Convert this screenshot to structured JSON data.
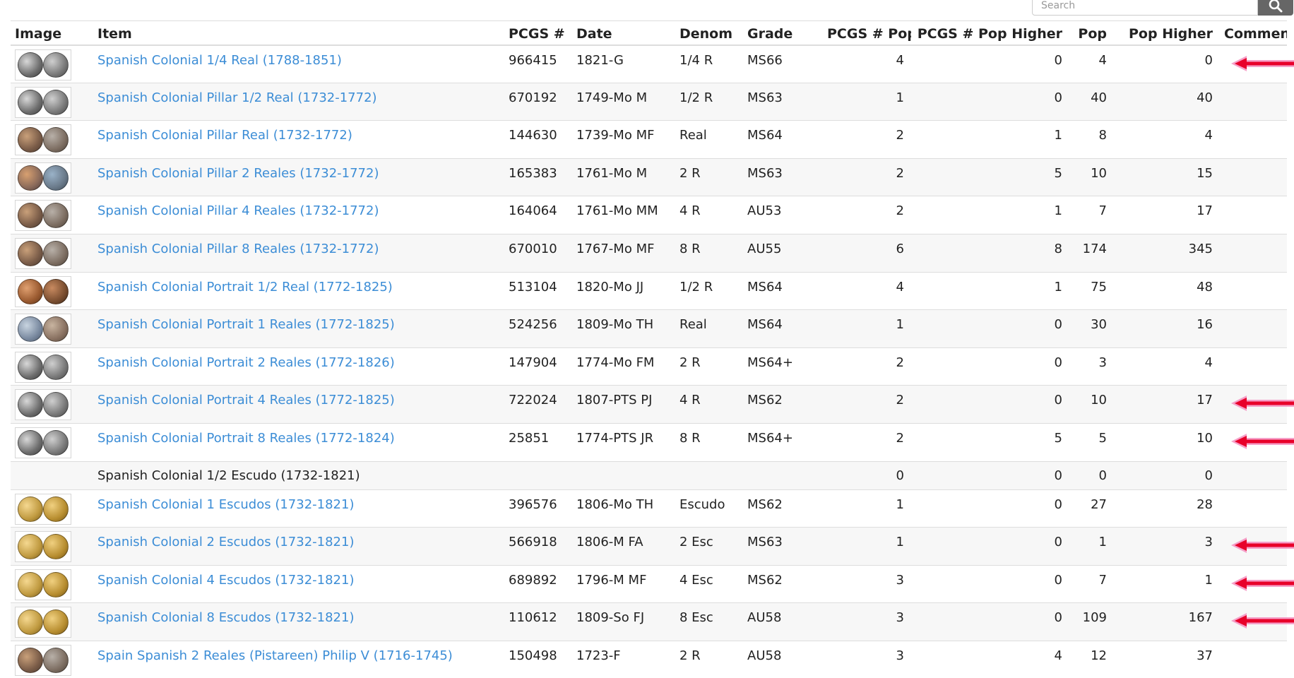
{
  "search": {
    "placeholder": "Search",
    "icon": "search-icon"
  },
  "columns": {
    "image": "Image",
    "item": "Item",
    "pcgs": "PCGS #",
    "date": "Date",
    "denom": "Denom",
    "grade": "Grade",
    "pcgs_pop": "PCGS # Pop",
    "pcgs_pop_higher": "PCGS # Pop Higher",
    "pop": "Pop",
    "pop_higher": "Pop Higher",
    "comments": "Comments"
  },
  "colors": {
    "link": "#3c8dd6",
    "arrow": "#e8002a",
    "arrow_glow": "#f58fc0"
  },
  "rows": [
    {
      "item": "Spanish Colonial 1/4 Real (1788-1851)",
      "pcgs": "966415",
      "date": "1821-G",
      "denom": "1/4 R",
      "grade": "MS66",
      "pcgs_pop": "4",
      "pcgs_pop_higher": "0",
      "pop": "4",
      "pop_higher": "0",
      "link": true,
      "has_image": true,
      "flagged": true,
      "coin_metal": "silver"
    },
    {
      "item": "Spanish Colonial Pillar 1/2 Real (1732-1772)",
      "pcgs": "670192",
      "date": "1749-Mo M",
      "denom": "1/2 R",
      "grade": "MS63",
      "pcgs_pop": "1",
      "pcgs_pop_higher": "0",
      "pop": "40",
      "pop_higher": "40",
      "link": true,
      "has_image": true,
      "flagged": false,
      "coin_metal": "silver"
    },
    {
      "item": "Spanish Colonial Pillar Real (1732-1772)",
      "pcgs": "144630",
      "date": "1739-Mo MF",
      "denom": "Real",
      "grade": "MS64",
      "pcgs_pop": "2",
      "pcgs_pop_higher": "1",
      "pop": "8",
      "pop_higher": "4",
      "link": true,
      "has_image": true,
      "flagged": false,
      "coin_metal": "toned"
    },
    {
      "item": "Spanish Colonial Pillar 2 Reales (1732-1772)",
      "pcgs": "165383",
      "date": "1761-Mo M",
      "denom": "2 R",
      "grade": "MS63",
      "pcgs_pop": "2",
      "pcgs_pop_higher": "5",
      "pop": "10",
      "pop_higher": "15",
      "link": true,
      "has_image": true,
      "flagged": false,
      "coin_metal": "rainbow"
    },
    {
      "item": "Spanish Colonial Pillar 4 Reales (1732-1772)",
      "pcgs": "164064",
      "date": "1761-Mo MM",
      "denom": "4 R",
      "grade": "AU53",
      "pcgs_pop": "2",
      "pcgs_pop_higher": "1",
      "pop": "7",
      "pop_higher": "17",
      "link": true,
      "has_image": true,
      "flagged": false,
      "coin_metal": "toned"
    },
    {
      "item": "Spanish Colonial Pillar 8 Reales (1732-1772)",
      "pcgs": "670010",
      "date": "1767-Mo MF",
      "denom": "8 R",
      "grade": "AU55",
      "pcgs_pop": "6",
      "pcgs_pop_higher": "8",
      "pop": "174",
      "pop_higher": "345",
      "link": true,
      "has_image": true,
      "flagged": false,
      "coin_metal": "toned"
    },
    {
      "item": "Spanish Colonial Portrait 1/2 Real (1772-1825)",
      "pcgs": "513104",
      "date": "1820-Mo JJ",
      "denom": "1/2 R",
      "grade": "MS64",
      "pcgs_pop": "4",
      "pcgs_pop_higher": "1",
      "pop": "75",
      "pop_higher": "48",
      "link": true,
      "has_image": true,
      "flagged": false,
      "coin_metal": "copper"
    },
    {
      "item": "Spanish Colonial Portrait 1 Reales (1772-1825)",
      "pcgs": "524256",
      "date": "1809-Mo TH",
      "denom": "Real",
      "grade": "MS64",
      "pcgs_pop": "1",
      "pcgs_pop_higher": "0",
      "pop": "30",
      "pop_higher": "16",
      "link": true,
      "has_image": true,
      "flagged": false,
      "coin_metal": "blue"
    },
    {
      "item": "Spanish Colonial Portrait 2 Reales (1772-1826)",
      "pcgs": "147904",
      "date": "1774-Mo FM",
      "denom": "2 R",
      "grade": "MS64+",
      "pcgs_pop": "2",
      "pcgs_pop_higher": "0",
      "pop": "3",
      "pop_higher": "4",
      "link": true,
      "has_image": true,
      "flagged": false,
      "coin_metal": "silver"
    },
    {
      "item": "Spanish Colonial Portrait 4 Reales (1772-1825)",
      "pcgs": "722024",
      "date": "1807-PTS PJ",
      "denom": "4 R",
      "grade": "MS62",
      "pcgs_pop": "2",
      "pcgs_pop_higher": "0",
      "pop": "10",
      "pop_higher": "17",
      "link": true,
      "has_image": true,
      "flagged": true,
      "coin_metal": "silver"
    },
    {
      "item": "Spanish Colonial Portrait 8 Reales (1772-1824)",
      "pcgs": "25851",
      "date": "1774-PTS JR",
      "denom": "8 R",
      "grade": "MS64+",
      "pcgs_pop": "2",
      "pcgs_pop_higher": "5",
      "pop": "5",
      "pop_higher": "10",
      "link": true,
      "has_image": true,
      "flagged": true,
      "coin_metal": "silver"
    },
    {
      "item": "Spanish Colonial 1/2 Escudo (1732-1821)",
      "pcgs": "",
      "date": "",
      "denom": "",
      "grade": "",
      "pcgs_pop": "0",
      "pcgs_pop_higher": "0",
      "pop": "0",
      "pop_higher": "0",
      "link": false,
      "has_image": false,
      "flagged": false,
      "coin_metal": ""
    },
    {
      "item": "Spanish Colonial 1 Escudos (1732-1821)",
      "pcgs": "396576",
      "date": "1806-Mo TH",
      "denom": "Escudo",
      "grade": "MS62",
      "pcgs_pop": "1",
      "pcgs_pop_higher": "0",
      "pop": "27",
      "pop_higher": "28",
      "link": true,
      "has_image": true,
      "flagged": false,
      "coin_metal": "gold"
    },
    {
      "item": "Spanish Colonial 2 Escudos (1732-1821)",
      "pcgs": "566918",
      "date": "1806-M FA",
      "denom": "2 Esc",
      "grade": "MS63",
      "pcgs_pop": "1",
      "pcgs_pop_higher": "0",
      "pop": "1",
      "pop_higher": "3",
      "link": true,
      "has_image": true,
      "flagged": true,
      "coin_metal": "gold"
    },
    {
      "item": "Spanish Colonial 4 Escudos (1732-1821)",
      "pcgs": "689892",
      "date": "1796-M MF",
      "denom": "4 Esc",
      "grade": "MS62",
      "pcgs_pop": "3",
      "pcgs_pop_higher": "0",
      "pop": "7",
      "pop_higher": "1",
      "link": true,
      "has_image": true,
      "flagged": true,
      "coin_metal": "gold"
    },
    {
      "item": "Spanish Colonial 8 Escudos (1732-1821)",
      "pcgs": "110612",
      "date": "1809-So FJ",
      "denom": "8 Esc",
      "grade": "AU58",
      "pcgs_pop": "3",
      "pcgs_pop_higher": "0",
      "pop": "109",
      "pop_higher": "167",
      "link": true,
      "has_image": true,
      "flagged": true,
      "coin_metal": "gold"
    },
    {
      "item": "Spain Spanish 2 Reales (Pistareen) Philip V (1716-1745)",
      "pcgs": "150498",
      "date": "1723-F",
      "denom": "2 R",
      "grade": "AU58",
      "pcgs_pop": "3",
      "pcgs_pop_higher": "4",
      "pop": "12",
      "pop_higher": "37",
      "link": true,
      "has_image": true,
      "flagged": false,
      "coin_metal": "toned"
    }
  ]
}
